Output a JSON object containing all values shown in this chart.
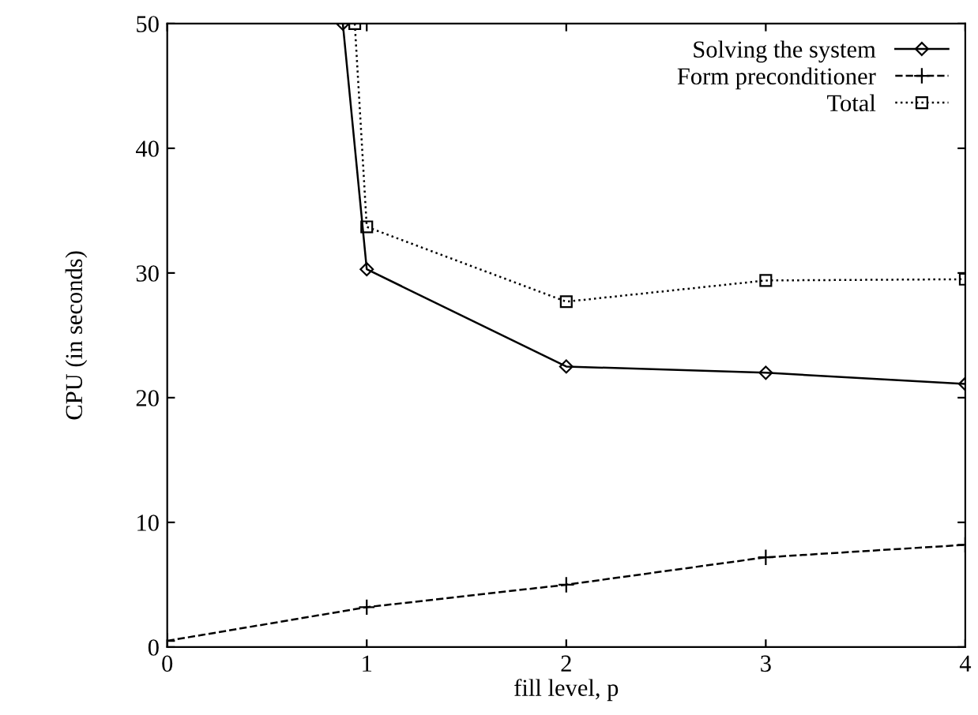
{
  "chart_data": {
    "type": "line",
    "xlabel": "fill level, p",
    "ylabel": "CPU (in seconds)",
    "xlim": [
      0,
      4
    ],
    "xticks": [
      0,
      1,
      2,
      3,
      4
    ],
    "ylim": [
      0,
      50
    ],
    "yticks": [
      0,
      10,
      20,
      30,
      40,
      50
    ],
    "grid": false,
    "legend": "top right",
    "series": [
      {
        "name": "Solving the system",
        "color": "#000000",
        "marker": "diamond",
        "line_style": "solid",
        "x": [
          0.88,
          1,
          2,
          3,
          4
        ],
        "values": [
          50,
          30.3,
          22.5,
          22.0,
          21.1
        ]
      },
      {
        "name": "Form preconditioner",
        "color": "#000000",
        "marker": "cross",
        "line_style": "dashed",
        "x": [
          0,
          1,
          2,
          3,
          4
        ],
        "values": [
          0.5,
          3.2,
          5.0,
          7.2,
          8.2
        ]
      },
      {
        "name": "Total",
        "color": "#000000",
        "marker": "square",
        "line_style": "dotted",
        "x": [
          0.94,
          1,
          2,
          3,
          4
        ],
        "values": [
          50,
          33.7,
          27.7,
          29.4,
          29.5
        ]
      }
    ]
  }
}
